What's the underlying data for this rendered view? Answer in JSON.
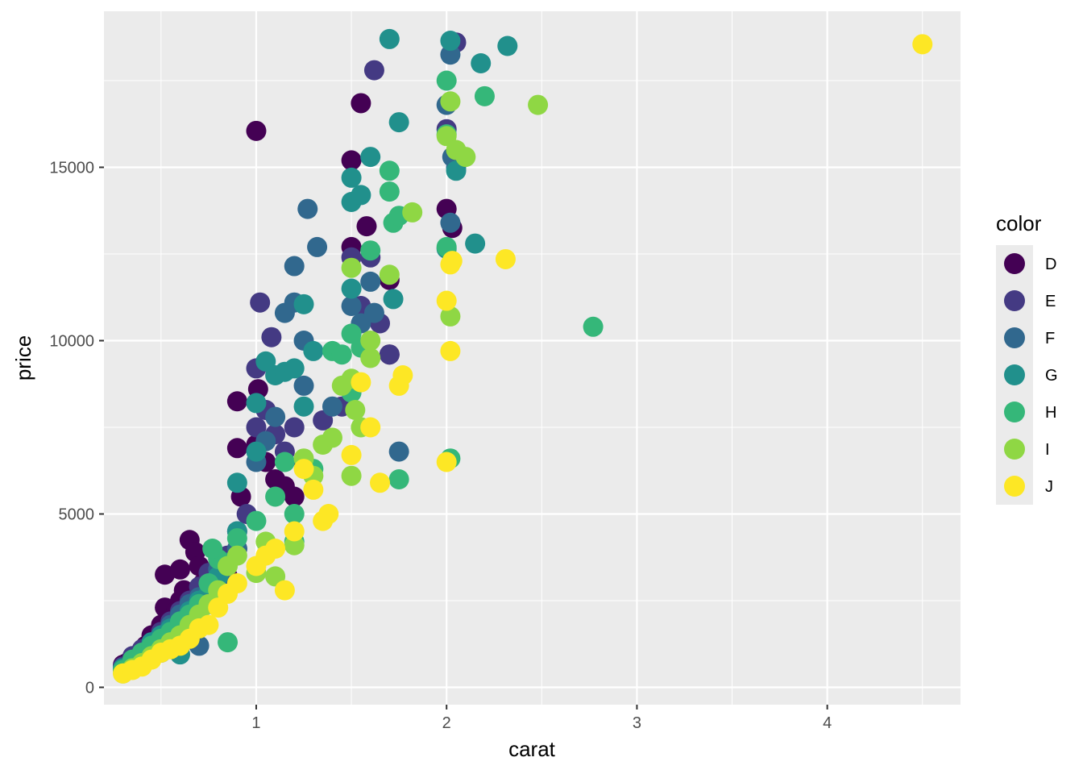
{
  "chart_data": {
    "type": "scatter",
    "title": "",
    "xlabel": "carat",
    "ylabel": "price",
    "xlim": [
      0.2,
      4.7
    ],
    "ylim": [
      -500,
      19500
    ],
    "x_ticks": [
      1,
      2,
      3,
      4
    ],
    "x_tick_labels": [
      "1",
      "2",
      "3",
      "4"
    ],
    "y_ticks": [
      0,
      5000,
      10000,
      15000
    ],
    "y_tick_labels": [
      "0",
      "5000",
      "10000",
      "15000"
    ],
    "grid": true,
    "legend": {
      "title": "color",
      "position": "right"
    },
    "series": [
      {
        "name": "D",
        "color": "#440154",
        "points": [
          [
            0.3,
            650
          ],
          [
            0.32,
            700
          ],
          [
            0.35,
            800
          ],
          [
            0.4,
            1000
          ],
          [
            0.42,
            1200
          ],
          [
            0.45,
            1500
          ],
          [
            0.5,
            1800
          ],
          [
            0.52,
            2300
          ],
          [
            0.55,
            2000
          ],
          [
            0.58,
            2200
          ],
          [
            0.6,
            2500
          ],
          [
            0.62,
            2800
          ],
          [
            0.65,
            4250
          ],
          [
            0.68,
            3900
          ],
          [
            0.7,
            3500
          ],
          [
            0.72,
            3000
          ],
          [
            0.75,
            2700
          ],
          [
            0.8,
            3500
          ],
          [
            0.85,
            3200
          ],
          [
            0.9,
            4000
          ],
          [
            0.9,
            6900
          ],
          [
            0.9,
            8250
          ],
          [
            0.92,
            5500
          ],
          [
            1.0,
            16050
          ],
          [
            1.0,
            7000
          ],
          [
            1.01,
            8600
          ],
          [
            1.05,
            6500
          ],
          [
            1.1,
            6000
          ],
          [
            1.15,
            5800
          ],
          [
            1.2,
            5500
          ],
          [
            1.5,
            15200
          ],
          [
            1.5,
            12700
          ],
          [
            1.55,
            16850
          ],
          [
            1.58,
            13300
          ],
          [
            1.7,
            11750
          ],
          [
            1.7,
            9600
          ],
          [
            2.0,
            13800
          ],
          [
            2.03,
            13250
          ],
          [
            0.52,
            3250
          ],
          [
            0.6,
            3400
          ],
          [
            0.7,
            2800
          ],
          [
            0.72,
            1800
          ]
        ]
      },
      {
        "name": "E",
        "color": "#443A83",
        "points": [
          [
            0.3,
            600
          ],
          [
            0.35,
            900
          ],
          [
            0.4,
            1100
          ],
          [
            0.45,
            1300
          ],
          [
            0.5,
            1600
          ],
          [
            0.55,
            1900
          ],
          [
            0.6,
            2200
          ],
          [
            0.65,
            2500
          ],
          [
            0.7,
            2900
          ],
          [
            0.75,
            3300
          ],
          [
            0.8,
            3000
          ],
          [
            0.85,
            3800
          ],
          [
            0.9,
            4500
          ],
          [
            0.95,
            5000
          ],
          [
            1.0,
            9200
          ],
          [
            1.0,
            7500
          ],
          [
            1.02,
            11100
          ],
          [
            1.05,
            8000
          ],
          [
            1.08,
            10100
          ],
          [
            1.1,
            7300
          ],
          [
            1.15,
            6800
          ],
          [
            1.2,
            7500
          ],
          [
            1.25,
            6500
          ],
          [
            1.35,
            7700
          ],
          [
            1.45,
            8100
          ],
          [
            1.5,
            12400
          ],
          [
            1.55,
            11000
          ],
          [
            1.6,
            12400
          ],
          [
            1.62,
            17800
          ],
          [
            1.65,
            10500
          ],
          [
            1.7,
            9600
          ],
          [
            2.0,
            16100
          ],
          [
            2.05,
            18600
          ]
        ]
      },
      {
        "name": "F",
        "color": "#31688E",
        "points": [
          [
            0.3,
            500
          ],
          [
            0.35,
            700
          ],
          [
            0.4,
            950
          ],
          [
            0.45,
            1200
          ],
          [
            0.5,
            1500
          ],
          [
            0.55,
            1800
          ],
          [
            0.6,
            2100
          ],
          [
            0.65,
            2400
          ],
          [
            0.7,
            2600
          ],
          [
            0.75,
            2400
          ],
          [
            0.8,
            3400
          ],
          [
            0.85,
            3000
          ],
          [
            0.9,
            4000
          ],
          [
            1.0,
            6500
          ],
          [
            1.05,
            7100
          ],
          [
            1.1,
            7800
          ],
          [
            1.15,
            10800
          ],
          [
            1.2,
            11100
          ],
          [
            1.2,
            12150
          ],
          [
            1.25,
            10000
          ],
          [
            1.25,
            8700
          ],
          [
            1.27,
            13800
          ],
          [
            1.32,
            12700
          ],
          [
            1.4,
            8100
          ],
          [
            1.5,
            11000
          ],
          [
            1.55,
            10500
          ],
          [
            1.6,
            11700
          ],
          [
            1.62,
            10800
          ],
          [
            1.75,
            6800
          ],
          [
            2.0,
            16800
          ],
          [
            2.02,
            18250
          ],
          [
            2.02,
            13400
          ],
          [
            2.03,
            15300
          ],
          [
            2.05,
            15000
          ],
          [
            0.7,
            1200
          ],
          [
            0.5,
            1000
          ]
        ]
      },
      {
        "name": "G",
        "color": "#21908C",
        "points": [
          [
            0.3,
            550
          ],
          [
            0.35,
            750
          ],
          [
            0.4,
            1000
          ],
          [
            0.45,
            1300
          ],
          [
            0.5,
            1500
          ],
          [
            0.55,
            1700
          ],
          [
            0.6,
            1900
          ],
          [
            0.65,
            2200
          ],
          [
            0.7,
            2500
          ],
          [
            0.75,
            2700
          ],
          [
            0.8,
            3200
          ],
          [
            0.85,
            3600
          ],
          [
            0.9,
            4500
          ],
          [
            0.9,
            5900
          ],
          [
            1.0,
            6800
          ],
          [
            1.0,
            8200
          ],
          [
            1.05,
            9400
          ],
          [
            1.1,
            9000
          ],
          [
            1.15,
            9100
          ],
          [
            1.2,
            9200
          ],
          [
            1.25,
            8100
          ],
          [
            1.25,
            11050
          ],
          [
            1.3,
            9700
          ],
          [
            1.5,
            14700
          ],
          [
            1.5,
            14000
          ],
          [
            1.55,
            14200
          ],
          [
            1.6,
            15300
          ],
          [
            1.7,
            18700
          ],
          [
            1.72,
            11200
          ],
          [
            1.75,
            16300
          ],
          [
            2.0,
            12650
          ],
          [
            2.02,
            18650
          ],
          [
            2.05,
            14900
          ],
          [
            2.15,
            12800
          ],
          [
            2.18,
            18000
          ],
          [
            2.32,
            18500
          ],
          [
            1.5,
            11500
          ],
          [
            0.6,
            950
          ]
        ]
      },
      {
        "name": "H",
        "color": "#35B779",
        "points": [
          [
            0.3,
            500
          ],
          [
            0.35,
            800
          ],
          [
            0.4,
            1000
          ],
          [
            0.45,
            1200
          ],
          [
            0.5,
            1400
          ],
          [
            0.55,
            1600
          ],
          [
            0.6,
            1900
          ],
          [
            0.65,
            2100
          ],
          [
            0.7,
            2400
          ],
          [
            0.75,
            3000
          ],
          [
            0.8,
            3700
          ],
          [
            0.85,
            1300
          ],
          [
            0.9,
            4300
          ],
          [
            1.0,
            4800
          ],
          [
            1.1,
            5500
          ],
          [
            1.15,
            6500
          ],
          [
            1.2,
            4200
          ],
          [
            1.2,
            5000
          ],
          [
            1.3,
            6300
          ],
          [
            1.4,
            9700
          ],
          [
            1.45,
            9600
          ],
          [
            1.5,
            10200
          ],
          [
            1.55,
            9800
          ],
          [
            1.6,
            12600
          ],
          [
            1.7,
            14900
          ],
          [
            1.7,
            14300
          ],
          [
            1.72,
            13400
          ],
          [
            1.75,
            13600
          ],
          [
            1.75,
            6000
          ],
          [
            2.0,
            17500
          ],
          [
            2.0,
            12700
          ],
          [
            2.0,
            15950
          ],
          [
            2.02,
            6600
          ],
          [
            2.2,
            17050
          ],
          [
            2.77,
            10400
          ],
          [
            1.5,
            8500
          ],
          [
            0.77,
            4000
          ]
        ]
      },
      {
        "name": "I",
        "color": "#8FD744",
        "points": [
          [
            0.3,
            400
          ],
          [
            0.35,
            550
          ],
          [
            0.4,
            700
          ],
          [
            0.45,
            900
          ],
          [
            0.5,
            1100
          ],
          [
            0.55,
            1300
          ],
          [
            0.6,
            1500
          ],
          [
            0.65,
            1800
          ],
          [
            0.7,
            2100
          ],
          [
            0.75,
            2400
          ],
          [
            0.8,
            2800
          ],
          [
            0.85,
            3500
          ],
          [
            0.9,
            3800
          ],
          [
            1.0,
            3300
          ],
          [
            1.05,
            4200
          ],
          [
            1.1,
            3200
          ],
          [
            1.2,
            4100
          ],
          [
            1.25,
            6600
          ],
          [
            1.3,
            6100
          ],
          [
            1.35,
            7000
          ],
          [
            1.4,
            7200
          ],
          [
            1.45,
            8700
          ],
          [
            1.5,
            8900
          ],
          [
            1.5,
            12100
          ],
          [
            1.52,
            8000
          ],
          [
            1.55,
            7500
          ],
          [
            1.6,
            9500
          ],
          [
            1.6,
            10000
          ],
          [
            1.5,
            6100
          ],
          [
            1.7,
            11900
          ],
          [
            1.82,
            13700
          ],
          [
            2.0,
            15900
          ],
          [
            2.02,
            16900
          ],
          [
            2.02,
            10700
          ],
          [
            2.05,
            15500
          ],
          [
            2.1,
            15300
          ],
          [
            2.48,
            16800
          ]
        ]
      },
      {
        "name": "J",
        "color": "#FDE725",
        "points": [
          [
            0.3,
            400
          ],
          [
            0.35,
            500
          ],
          [
            0.4,
            600
          ],
          [
            0.45,
            800
          ],
          [
            0.5,
            1000
          ],
          [
            0.55,
            1100
          ],
          [
            0.6,
            1200
          ],
          [
            0.65,
            1400
          ],
          [
            0.7,
            1700
          ],
          [
            0.75,
            1800
          ],
          [
            0.8,
            2300
          ],
          [
            0.85,
            2700
          ],
          [
            0.9,
            3000
          ],
          [
            1.0,
            3500
          ],
          [
            1.05,
            3800
          ],
          [
            1.1,
            4000
          ],
          [
            1.15,
            2800
          ],
          [
            1.2,
            4500
          ],
          [
            1.25,
            6300
          ],
          [
            1.3,
            5700
          ],
          [
            1.35,
            4800
          ],
          [
            1.38,
            5000
          ],
          [
            1.5,
            6700
          ],
          [
            1.55,
            8800
          ],
          [
            1.6,
            7500
          ],
          [
            1.65,
            5900
          ],
          [
            1.75,
            8700
          ],
          [
            1.77,
            9000
          ],
          [
            2.0,
            6500
          ],
          [
            2.0,
            11150
          ],
          [
            2.02,
            9700
          ],
          [
            2.02,
            12200
          ],
          [
            2.03,
            12300
          ],
          [
            2.31,
            12350
          ],
          [
            4.5,
            18550
          ]
        ]
      }
    ]
  }
}
